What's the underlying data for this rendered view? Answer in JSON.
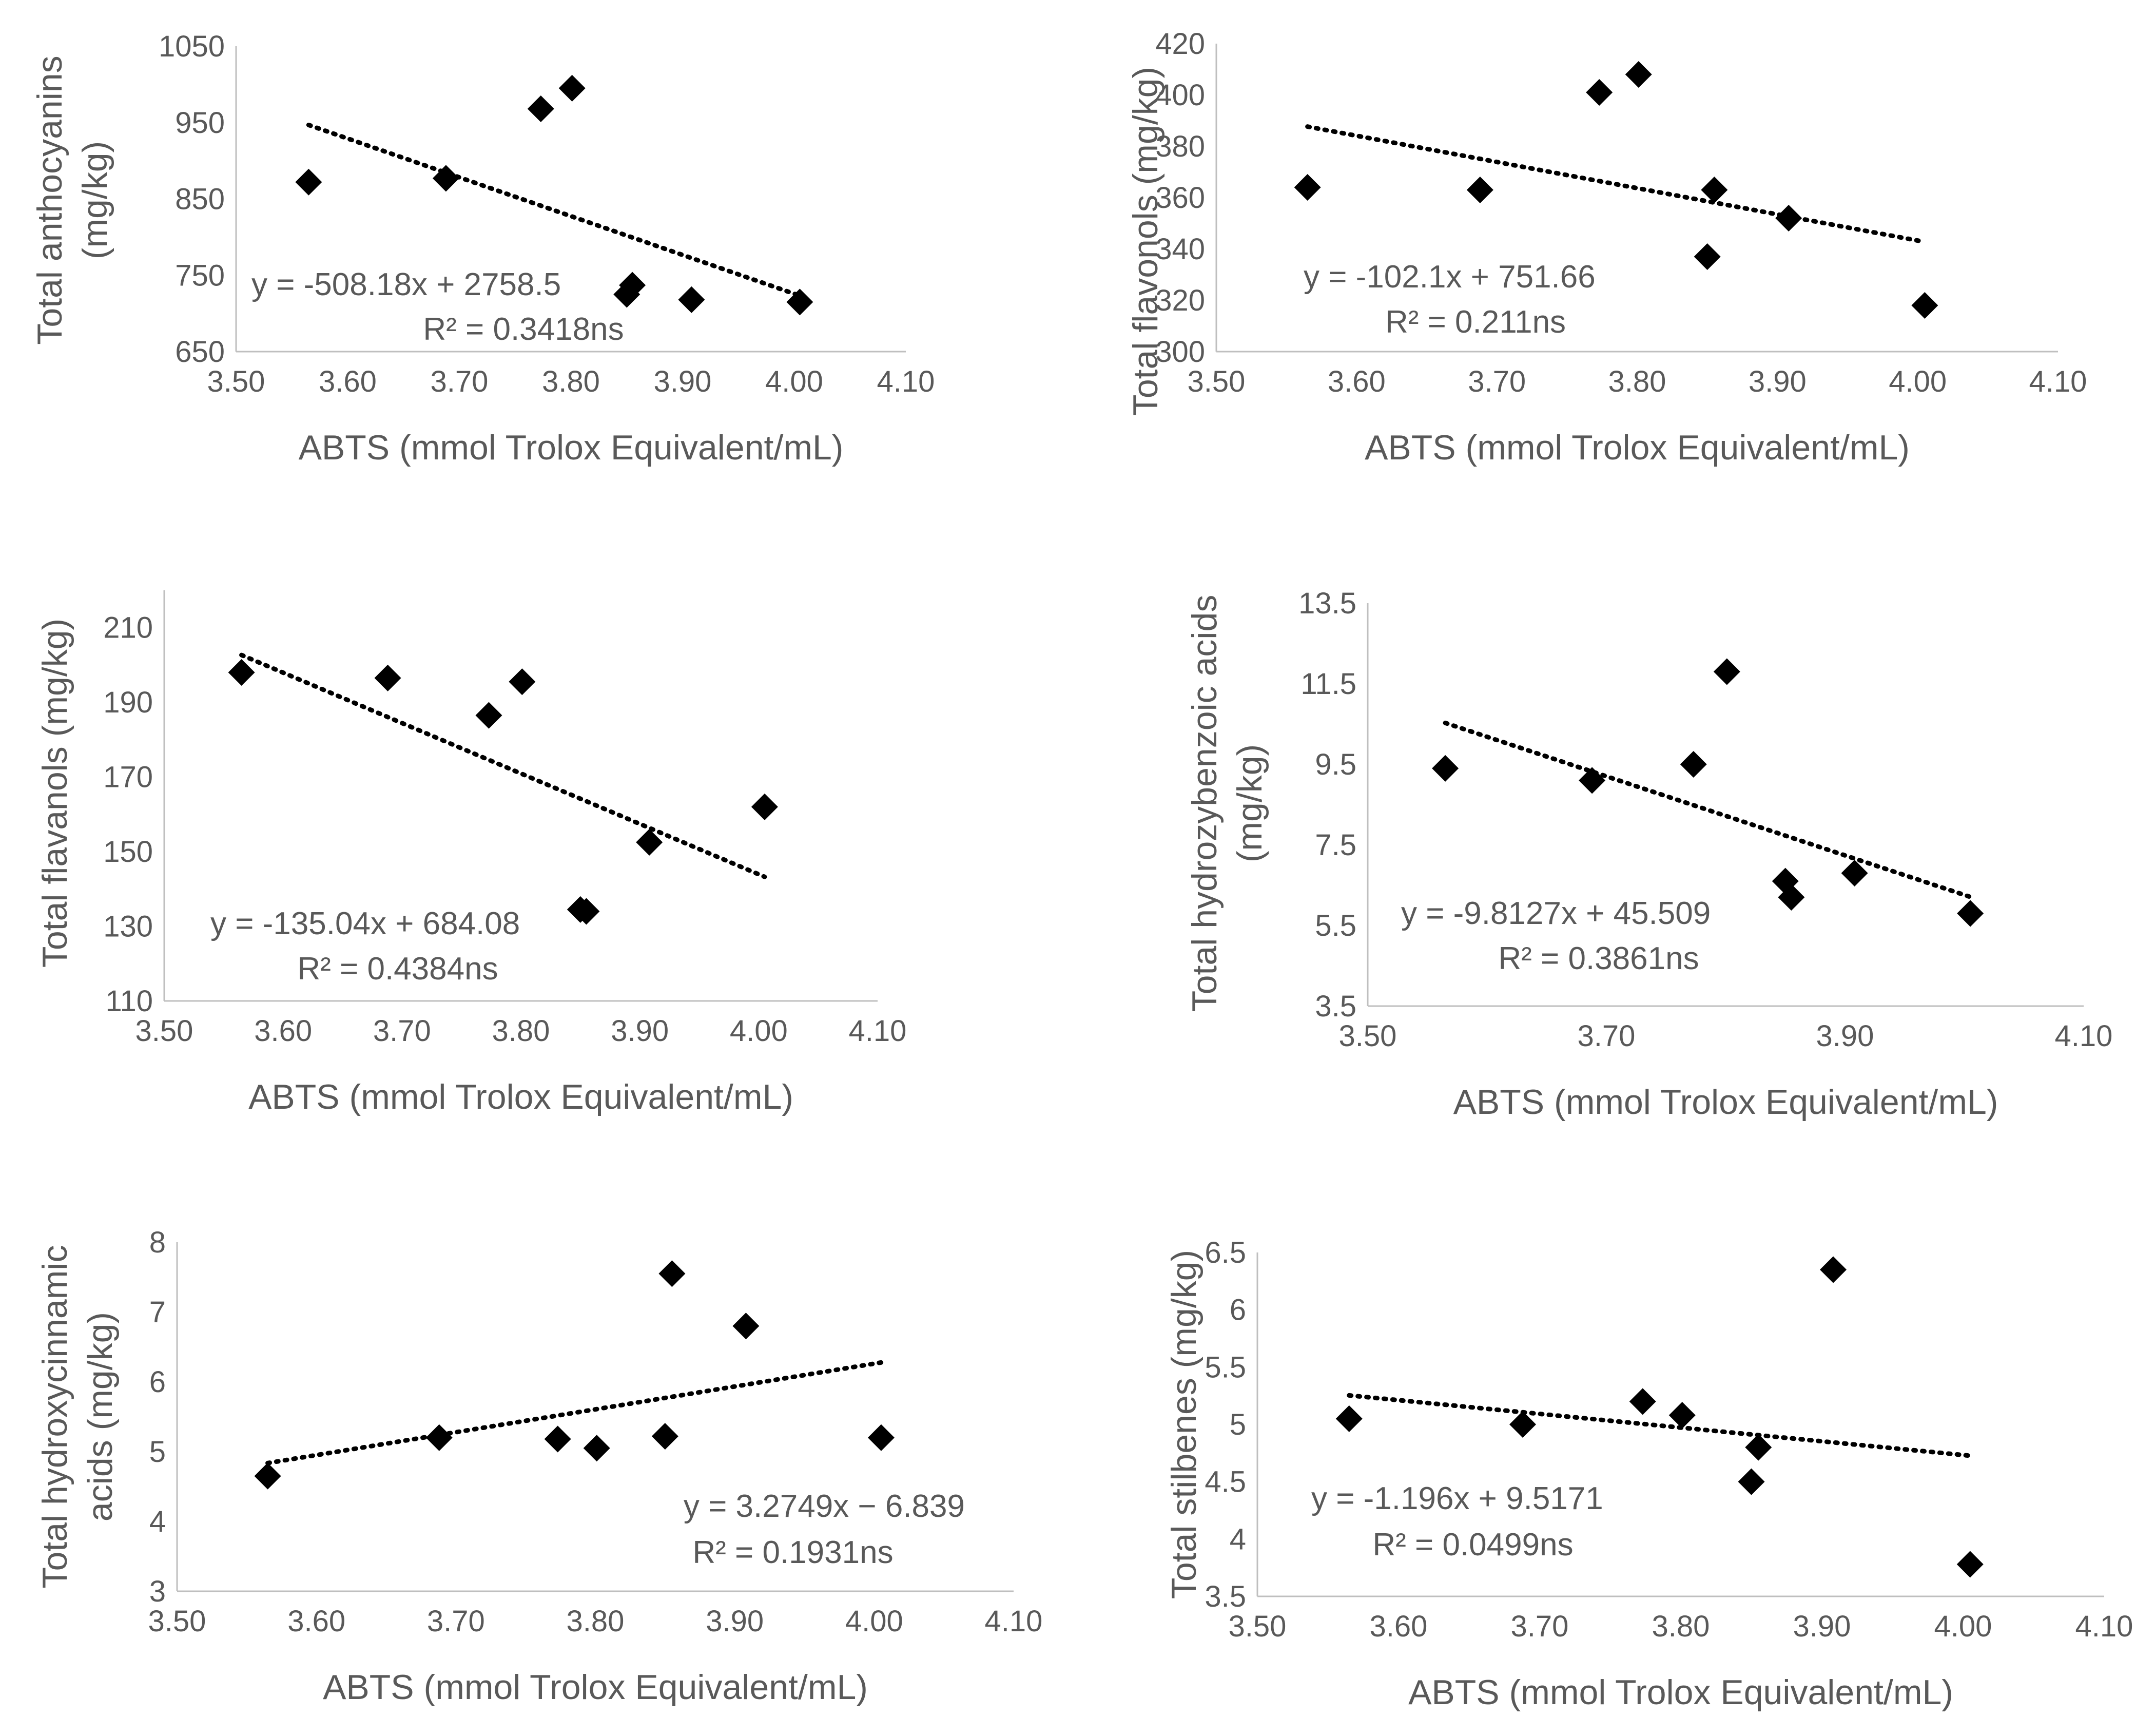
{
  "chart_data": [
    {
      "type": "scatter",
      "xlabel": "ABTS (mmol Trolox Equivalent/mL)",
      "ylabel": [
        "Total anthocyanins",
        "(mg/kg)"
      ],
      "xlim": [
        3.5,
        4.1
      ],
      "ylim": [
        650,
        1050
      ],
      "xticks": [
        "3.50",
        "3.60",
        "3.70",
        "3.80",
        "3.90",
        "4.00",
        "4.10"
      ],
      "yticks": [
        "650",
        "750",
        "850",
        "950",
        "1050"
      ],
      "x": [
        3.565,
        3.688,
        3.773,
        3.801,
        3.85,
        3.855,
        3.908,
        4.005
      ],
      "y": [
        872,
        877,
        968,
        995,
        725,
        737,
        718,
        715
      ],
      "trendline": {
        "type": "linear",
        "slope": -508.18,
        "intercept": 2758.5,
        "x_range": [
          3.565,
          4.005
        ]
      },
      "equation": "y = -508.18x + 2758.5",
      "r2": "R² = 0.3418ns"
    },
    {
      "type": "scatter",
      "xlabel": "ABTS (mmol Trolox Equivalent/mL)",
      "ylabel": [
        "Total flavonols (mg/kg)"
      ],
      "xlim": [
        3.5,
        4.1
      ],
      "ylim": [
        300,
        420
      ],
      "xticks": [
        "3.50",
        "3.60",
        "3.70",
        "3.80",
        "3.90",
        "4.00",
        "4.10"
      ],
      "yticks": [
        "300",
        "320",
        "340",
        "360",
        "380",
        "400",
        "420"
      ],
      "x": [
        3.565,
        3.688,
        3.773,
        3.801,
        3.85,
        3.855,
        3.908,
        4.005
      ],
      "y": [
        364,
        363,
        401,
        408,
        337,
        363,
        352,
        318
      ],
      "trendline": {
        "type": "linear",
        "slope": -102.1,
        "intercept": 751.66,
        "x_range": [
          3.565,
          4.005
        ]
      },
      "equation": "y = -102.1x + 751.66",
      "r2": "R² = 0.211ns"
    },
    {
      "type": "scatter",
      "xlabel": "ABTS (mmol Trolox Equivalent/mL)",
      "ylabel": [
        "Total flavanols (mg/kg)"
      ],
      "xlim": [
        3.5,
        4.1
      ],
      "ylim": [
        110,
        220
      ],
      "xticks": [
        "3.50",
        "3.60",
        "3.70",
        "3.80",
        "3.90",
        "4.00",
        "4.10"
      ],
      "yticks": [
        "110",
        "130",
        "150",
        "170",
        "190",
        "210"
      ],
      "x": [
        3.565,
        3.688,
        3.773,
        3.801,
        3.85,
        3.855,
        3.908,
        4.005
      ],
      "y": [
        198,
        196.5,
        186.5,
        195.5,
        134.5,
        134,
        152.5,
        162
      ],
      "trendline": {
        "type": "linear",
        "slope": -135.04,
        "intercept": 684.08,
        "x_range": [
          3.565,
          4.005
        ]
      },
      "equation": "y = -135.04x + 684.08",
      "r2": "R² = 0.4384ns"
    },
    {
      "type": "scatter",
      "xlabel": "ABTS (mmol Trolox Equivalent/mL)",
      "ylabel": [
        "Total hydrozybenzoic acids",
        "(mg/kg)"
      ],
      "xlim": [
        3.5,
        4.1
      ],
      "ylim": [
        3.5,
        13.5
      ],
      "xticks": [
        "3.50",
        "3.70",
        "3.90",
        "4.10"
      ],
      "yticks": [
        "3.5",
        "5.5",
        "7.5",
        "9.5",
        "11.5",
        "13.5"
      ],
      "x": [
        3.565,
        3.688,
        3.773,
        3.801,
        3.85,
        3.855,
        3.908,
        4.005
      ],
      "y": [
        9.4,
        9.1,
        9.5,
        11.8,
        6.6,
        6.2,
        6.8,
        5.8
      ],
      "trendline": {
        "type": "linear",
        "slope": -9.8127,
        "intercept": 45.509,
        "x_range": [
          3.565,
          4.005
        ]
      },
      "equation": "y = -9.8127x + 45.509",
      "r2": "R² = 0.3861ns"
    },
    {
      "type": "scatter",
      "xlabel": "ABTS (mmol Trolox Equivalent/mL)",
      "ylabel": [
        "Total hydroxycinnamic",
        "acids (mg/kg)"
      ],
      "xlim": [
        3.5,
        4.1
      ],
      "ylim": [
        3,
        8
      ],
      "xticks": [
        "3.50",
        "3.60",
        "3.70",
        "3.80",
        "3.90",
        "4.00",
        "4.10"
      ],
      "yticks": [
        "3",
        "4",
        "5",
        "6",
        "7",
        "8"
      ],
      "x": [
        3.565,
        3.688,
        3.773,
        3.801,
        3.85,
        3.855,
        3.908,
        4.005
      ],
      "y": [
        4.65,
        5.2,
        5.18,
        5.05,
        5.22,
        7.55,
        6.8,
        5.2
      ],
      "trendline": {
        "type": "linear",
        "slope": 3.2749,
        "intercept": -6.839,
        "x_range": [
          3.565,
          4.005
        ]
      },
      "equation": "y = 3.2749x − 6.839",
      "r2": "R² = 0.1931ns"
    },
    {
      "type": "scatter",
      "xlabel": "ABTS (mmol Trolox Equivalent/mL)",
      "ylabel": [
        "Total stilbenes (mg/kg)"
      ],
      "xlim": [
        3.5,
        4.1
      ],
      "ylim": [
        3.5,
        6.5
      ],
      "xticks": [
        "3.50",
        "3.60",
        "3.70",
        "3.80",
        "3.90",
        "4.00",
        "4.10"
      ],
      "yticks": [
        "3.5",
        "4",
        "4.5",
        "5",
        "5.5",
        "6",
        "6.5"
      ],
      "x": [
        3.565,
        3.688,
        3.773,
        3.801,
        3.85,
        3.855,
        3.908,
        4.005
      ],
      "y": [
        5.05,
        5.0,
        5.2,
        5.08,
        4.5,
        4.8,
        6.35,
        3.78
      ],
      "trendline": {
        "type": "linear",
        "slope": -1.196,
        "intercept": 9.5171,
        "x_range": [
          3.565,
          4.005
        ]
      },
      "equation": "y = -1.196x + 9.5171",
      "r2": "R² = 0.0499ns"
    }
  ]
}
